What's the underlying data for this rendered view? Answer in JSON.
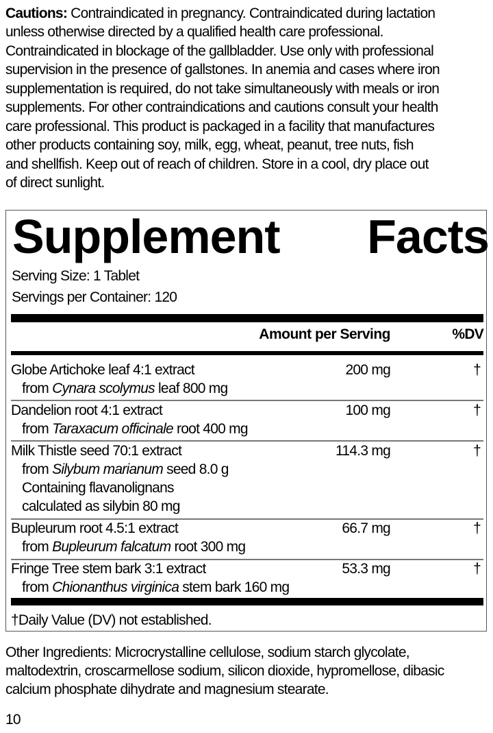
{
  "cautions": {
    "label": "Cautions:",
    "lines": [
      " Contraindicated in pregnancy. Contraindicated during lactation",
      "unless otherwise directed by a qualified health care professional.",
      "Contraindicated in blockage of the gallbladder. Use only with professional",
      "supervision in the presence of gallstones. In anemia and cases where iron",
      "supplementation is required, do not take simultaneously with meals or iron",
      "supplements. For other contraindications and cautions consult your health",
      "care professional. This product is packaged in a facility that manufactures",
      "other products containing soy, milk, egg, wheat, peanut, tree nuts, fish",
      "and shellfish. Keep out of reach of children. Store in a cool, dry place out",
      "of direct sunlight."
    ]
  },
  "facts": {
    "title_word1": "Supplement",
    "title_word2": "Facts",
    "serving_size": "Serving Size: 1 Tablet",
    "servings_per_container": "Servings per Container: 120",
    "col_amount": "Amount per Serving",
    "col_dv": "%DV",
    "rows": [
      {
        "name": "Globe Artichoke leaf 4:1 extract",
        "from": "from ",
        "species": "Cynara scolymus",
        "rest": " leaf 800 mg",
        "amount": "200 mg",
        "dv": "†"
      },
      {
        "name": "Dandelion root 4:1 extract",
        "from": "from ",
        "species": "Taraxacum officinale",
        "rest": " root 400 mg",
        "amount": "100 mg",
        "dv": "†"
      },
      {
        "name": "Milk Thistle seed 70:1 extract",
        "from": "from ",
        "species": "Silybum marianum",
        "rest": " seed 8.0 g",
        "extra1": "Containing flavanolignans",
        "extra2": "calculated as silybin 80 mg",
        "amount": "114.3 mg",
        "dv": "†"
      },
      {
        "name": "Bupleurum root 4.5:1 extract",
        "from": "from ",
        "species": "Bupleurum falcatum",
        "rest": " root 300 mg",
        "amount": "66.7 mg",
        "dv": "†"
      },
      {
        "name": "Fringe Tree stem bark 3:1 extract",
        "from": "from ",
        "species": "Chionanthus virginica",
        "rest": " stem bark 160 mg",
        "amount": "53.3 mg",
        "dv": "†"
      }
    ],
    "footnote": "†Daily Value (DV) not established."
  },
  "other_ingredients": [
    "Other Ingredients: Microcrystalline cellulose, sodium starch glycolate,",
    "maltodextrin, croscarmellose sodium, silicon dioxide, hypromellose, dibasic",
    "calcium phosphate dihydrate and magnesium stearate."
  ],
  "page_number": "10"
}
